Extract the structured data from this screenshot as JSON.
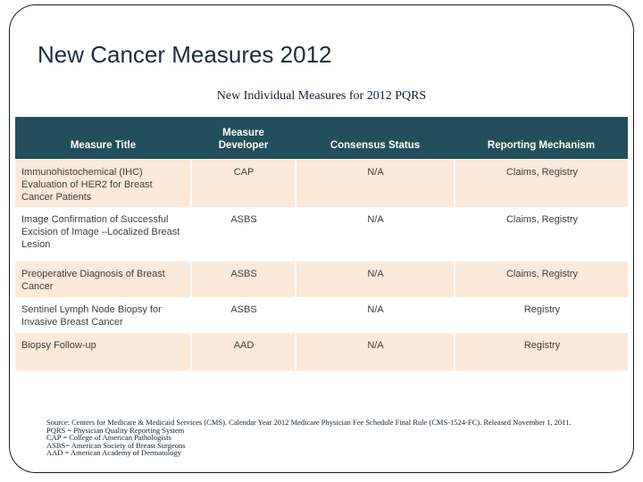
{
  "slide": {
    "title": "New Cancer Measures 2012",
    "subtitle": "New Individual Measures for 2012 PQRS"
  },
  "table": {
    "columns": [
      "Measure Title",
      "Measure Developer",
      "Consensus Status",
      "Reporting Mechanism"
    ],
    "rows": [
      {
        "cells": [
          "Immunohistochemical (IHC) Evaluation of HER2 for Breast Cancer Patients",
          "CAP",
          "N/A",
          "Claims, Registry"
        ]
      },
      {
        "cells": [
          "Image Confirmation of Successful Excision of Image –Localized Breast Lesion",
          "ASBS",
          "N/A",
          "Claims, Registry"
        ]
      },
      {
        "cells": [
          "Preoperative Diagnosis of Breast Cancer",
          "ASBS",
          "N/A",
          "Claims, Registry"
        ]
      },
      {
        "cells": [
          "Sentinel Lymph Node Biopsy for Invasive Breast Cancer",
          "ASBS",
          "N/A",
          "Registry"
        ]
      },
      {
        "cells": [
          "Biopsy Follow-up",
          "AAD",
          "N/A",
          "Registry"
        ]
      }
    ]
  },
  "footnotes": {
    "source": "Source: Centers for Medicare & Medicaid Services (CMS).  Calendar Year 2012 Medicare Physician Fee Schedule Final Rule (CMS-1524-FC).  Released November 1, 2011.",
    "pqrs": "PQRS = Physician Quality Reporting System",
    "cap": "CAP = College of American Pathologists",
    "asbs": "ASBS= American Society of Breast Surgeons",
    "aad": "AAD = American Academy of Dermatology"
  },
  "colors": {
    "header_bg": "#224f5b",
    "header_text": "#ffffff",
    "row_alt_bg": "#fce9d9",
    "row_bg": "#ffffff",
    "body_text": "#404040",
    "title_text": "#1b2c3d",
    "border": "#1c1c1c"
  }
}
